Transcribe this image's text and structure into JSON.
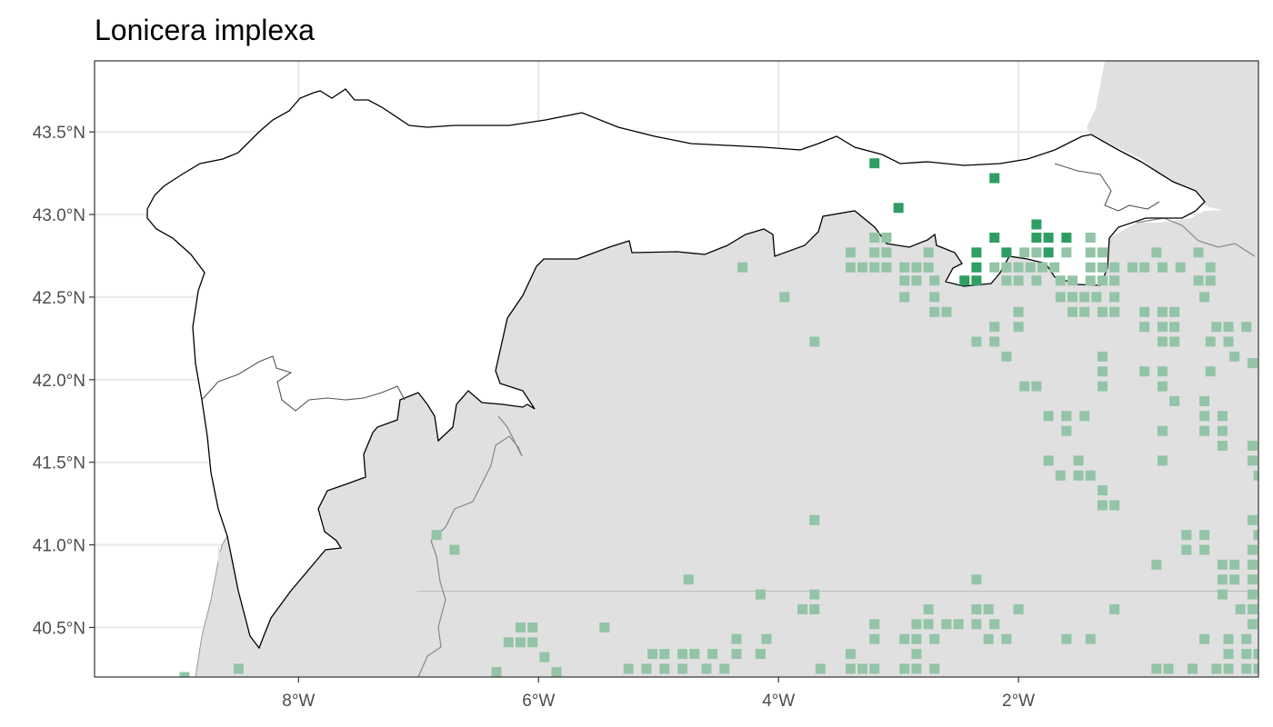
{
  "title": "Lonicera implexa",
  "colors": {
    "land_other": "#e0e0e0",
    "region_fill": "#ffffff",
    "region_border": "#000000",
    "internal_border": "#555555",
    "grid": "#ebebeb",
    "panel_border": "#333333",
    "presence": "#2e9e63",
    "other": "#93c4a7"
  },
  "chart_data": {
    "type": "map",
    "title": "Lonicera implexa",
    "xlim": [
      -9.7,
      0.0
    ],
    "ylim": [
      40.2,
      43.93
    ],
    "grid": true,
    "x_ticks": [
      {
        "value": -8,
        "label": "8°W"
      },
      {
        "value": -6,
        "label": "6°W"
      },
      {
        "value": -4,
        "label": "4°W"
      },
      {
        "value": -2,
        "label": "2°W"
      }
    ],
    "y_ticks": [
      {
        "value": 43.5,
        "label": "43.5°N"
      },
      {
        "value": 43.0,
        "label": "43.0°N"
      },
      {
        "value": 42.5,
        "label": "42.5°N"
      },
      {
        "value": 42.0,
        "label": "42.0°N"
      },
      {
        "value": 41.5,
        "label": "41.5°N"
      },
      {
        "value": 41.0,
        "label": "41.0°N"
      },
      {
        "value": 40.5,
        "label": "40.5°N"
      }
    ],
    "presence_points": [
      [
        -3.2,
        43.31
      ],
      [
        -2.2,
        43.22
      ],
      [
        -3.0,
        43.04
      ],
      [
        -1.85,
        42.94
      ],
      [
        -2.2,
        42.86
      ],
      [
        -1.85,
        42.86
      ],
      [
        -1.75,
        42.86
      ],
      [
        -1.6,
        42.86
      ],
      [
        -2.35,
        42.77
      ],
      [
        -2.1,
        42.77
      ],
      [
        -1.75,
        42.77
      ],
      [
        -2.35,
        42.68
      ],
      [
        -2.45,
        42.6
      ],
      [
        -2.35,
        42.6
      ]
    ],
    "other_points": [
      [
        -3.2,
        42.86
      ],
      [
        -3.1,
        42.86
      ],
      [
        -3.4,
        42.77
      ],
      [
        -3.2,
        42.77
      ],
      [
        -3.1,
        42.77
      ],
      [
        -2.75,
        42.77
      ],
      [
        -1.95,
        42.77
      ],
      [
        -1.85,
        42.77
      ],
      [
        -1.6,
        42.77
      ],
      [
        -1.4,
        42.86
      ],
      [
        -1.4,
        42.77
      ],
      [
        -1.3,
        42.77
      ],
      [
        -0.85,
        42.77
      ],
      [
        -4.3,
        42.68
      ],
      [
        -3.4,
        42.68
      ],
      [
        -3.3,
        42.68
      ],
      [
        -3.2,
        42.68
      ],
      [
        -3.1,
        42.68
      ],
      [
        -2.95,
        42.68
      ],
      [
        -2.85,
        42.68
      ],
      [
        -2.75,
        42.68
      ],
      [
        -2.2,
        42.68
      ],
      [
        -2.1,
        42.68
      ],
      [
        -2.0,
        42.68
      ],
      [
        -1.9,
        42.68
      ],
      [
        -1.8,
        42.68
      ],
      [
        -1.7,
        42.68
      ],
      [
        -1.4,
        42.68
      ],
      [
        -1.3,
        42.68
      ],
      [
        -1.2,
        42.68
      ],
      [
        -1.05,
        42.68
      ],
      [
        -0.95,
        42.68
      ],
      [
        -0.8,
        42.68
      ],
      [
        -0.65,
        42.68
      ],
      [
        -0.4,
        42.68
      ],
      [
        -0.5,
        42.77
      ],
      [
        -2.95,
        42.6
      ],
      [
        -2.85,
        42.6
      ],
      [
        -2.7,
        42.6
      ],
      [
        -2.1,
        42.6
      ],
      [
        -2.0,
        42.6
      ],
      [
        -1.85,
        42.6
      ],
      [
        -1.65,
        42.6
      ],
      [
        -1.55,
        42.6
      ],
      [
        -1.4,
        42.6
      ],
      [
        -1.3,
        42.6
      ],
      [
        -1.2,
        42.6
      ],
      [
        -0.5,
        42.6
      ],
      [
        -0.4,
        42.6
      ],
      [
        -3.95,
        42.5
      ],
      [
        -2.95,
        42.5
      ],
      [
        -2.7,
        42.5
      ],
      [
        -1.65,
        42.5
      ],
      [
        -1.55,
        42.5
      ],
      [
        -1.45,
        42.5
      ],
      [
        -1.35,
        42.5
      ],
      [
        -1.2,
        42.5
      ],
      [
        -0.45,
        42.5
      ],
      [
        -2.7,
        42.41
      ],
      [
        -2.6,
        42.41
      ],
      [
        -2.0,
        42.41
      ],
      [
        -1.55,
        42.41
      ],
      [
        -1.45,
        42.41
      ],
      [
        -1.3,
        42.41
      ],
      [
        -1.2,
        42.41
      ],
      [
        -0.95,
        42.41
      ],
      [
        -0.8,
        42.41
      ],
      [
        -0.7,
        42.41
      ],
      [
        -2.2,
        42.32
      ],
      [
        -2.0,
        42.32
      ],
      [
        -0.95,
        42.32
      ],
      [
        -0.8,
        42.32
      ],
      [
        -0.7,
        42.32
      ],
      [
        -0.35,
        42.32
      ],
      [
        -0.25,
        42.32
      ],
      [
        -0.1,
        42.32
      ],
      [
        -3.7,
        42.23
      ],
      [
        -2.35,
        42.23
      ],
      [
        -2.2,
        42.23
      ],
      [
        -0.8,
        42.23
      ],
      [
        -0.7,
        42.23
      ],
      [
        -0.4,
        42.23
      ],
      [
        -0.25,
        42.23
      ],
      [
        -2.1,
        42.14
      ],
      [
        -1.3,
        42.14
      ],
      [
        -0.2,
        42.14
      ],
      [
        -0.05,
        42.1
      ],
      [
        -1.3,
        42.05
      ],
      [
        -0.95,
        42.05
      ],
      [
        -0.8,
        42.05
      ],
      [
        -0.4,
        42.05
      ],
      [
        -1.95,
        41.96
      ],
      [
        -1.85,
        41.96
      ],
      [
        -1.3,
        41.96
      ],
      [
        -0.8,
        41.96
      ],
      [
        -0.7,
        41.87
      ],
      [
        -0.45,
        41.87
      ],
      [
        -1.75,
        41.78
      ],
      [
        -1.6,
        41.78
      ],
      [
        -1.45,
        41.78
      ],
      [
        -0.45,
        41.78
      ],
      [
        -0.3,
        41.78
      ],
      [
        -1.6,
        41.69
      ],
      [
        -0.8,
        41.69
      ],
      [
        -0.45,
        41.69
      ],
      [
        -0.3,
        41.69
      ],
      [
        -0.3,
        41.6
      ],
      [
        -0.05,
        41.6
      ],
      [
        -1.75,
        41.51
      ],
      [
        -1.5,
        41.51
      ],
      [
        -0.8,
        41.51
      ],
      [
        -0.05,
        41.51
      ],
      [
        -1.65,
        41.42
      ],
      [
        -1.5,
        41.42
      ],
      [
        -1.4,
        41.42
      ],
      [
        0.0,
        41.42
      ],
      [
        -1.3,
        41.33
      ],
      [
        -1.3,
        41.24
      ],
      [
        -1.2,
        41.24
      ],
      [
        -3.7,
        41.15
      ],
      [
        -0.05,
        41.15
      ],
      [
        -6.85,
        41.06
      ],
      [
        -0.6,
        41.06
      ],
      [
        -0.45,
        41.06
      ],
      [
        0.0,
        41.06
      ],
      [
        -6.7,
        40.97
      ],
      [
        -0.6,
        40.97
      ],
      [
        -0.45,
        40.97
      ],
      [
        -0.05,
        40.97
      ],
      [
        -0.85,
        40.88
      ],
      [
        -0.3,
        40.88
      ],
      [
        -0.2,
        40.88
      ],
      [
        -0.05,
        40.88
      ],
      [
        -4.75,
        40.79
      ],
      [
        -2.35,
        40.79
      ],
      [
        -0.3,
        40.79
      ],
      [
        -0.2,
        40.79
      ],
      [
        -0.05,
        40.79
      ],
      [
        -4.15,
        40.7
      ],
      [
        -3.7,
        40.7
      ],
      [
        -0.3,
        40.7
      ],
      [
        -0.05,
        40.7
      ],
      [
        -3.8,
        40.61
      ],
      [
        -3.7,
        40.61
      ],
      [
        -2.75,
        40.61
      ],
      [
        -2.35,
        40.61
      ],
      [
        -2.25,
        40.61
      ],
      [
        -2.0,
        40.61
      ],
      [
        -1.2,
        40.61
      ],
      [
        -0.15,
        40.61
      ],
      [
        -0.05,
        40.61
      ],
      [
        -6.15,
        40.5
      ],
      [
        -6.05,
        40.5
      ],
      [
        -5.45,
        40.5
      ],
      [
        -3.2,
        40.52
      ],
      [
        -2.85,
        40.52
      ],
      [
        -2.75,
        40.52
      ],
      [
        -2.6,
        40.52
      ],
      [
        -2.5,
        40.52
      ],
      [
        -2.35,
        40.52
      ],
      [
        -2.2,
        40.52
      ],
      [
        -0.05,
        40.52
      ],
      [
        -6.25,
        40.41
      ],
      [
        -6.15,
        40.41
      ],
      [
        -6.05,
        40.41
      ],
      [
        -4.35,
        40.43
      ],
      [
        -4.1,
        40.43
      ],
      [
        -3.2,
        40.43
      ],
      [
        -2.95,
        40.43
      ],
      [
        -2.85,
        40.43
      ],
      [
        -2.7,
        40.43
      ],
      [
        -2.25,
        40.43
      ],
      [
        -2.1,
        40.43
      ],
      [
        -1.6,
        40.43
      ],
      [
        -1.4,
        40.43
      ],
      [
        -0.45,
        40.43
      ],
      [
        -0.25,
        40.43
      ],
      [
        -0.1,
        40.43
      ],
      [
        -5.95,
        40.32
      ],
      [
        -5.05,
        40.34
      ],
      [
        -4.95,
        40.34
      ],
      [
        -4.8,
        40.34
      ],
      [
        -4.7,
        40.34
      ],
      [
        -4.55,
        40.34
      ],
      [
        -4.35,
        40.34
      ],
      [
        -4.15,
        40.34
      ],
      [
        -3.4,
        40.34
      ],
      [
        -2.85,
        40.34
      ],
      [
        -0.25,
        40.34
      ],
      [
        -0.1,
        40.34
      ],
      [
        0.0,
        40.34
      ],
      [
        -8.5,
        40.25
      ],
      [
        -6.35,
        40.23
      ],
      [
        -5.85,
        40.23
      ],
      [
        -5.25,
        40.25
      ],
      [
        -5.1,
        40.25
      ],
      [
        -4.95,
        40.25
      ],
      [
        -4.8,
        40.25
      ],
      [
        -4.6,
        40.25
      ],
      [
        -4.45,
        40.25
      ],
      [
        -3.65,
        40.25
      ],
      [
        -3.4,
        40.25
      ],
      [
        -3.3,
        40.25
      ],
      [
        -3.2,
        40.25
      ],
      [
        -2.95,
        40.25
      ],
      [
        -2.85,
        40.25
      ],
      [
        -2.7,
        40.25
      ],
      [
        -0.85,
        40.25
      ],
      [
        -0.75,
        40.25
      ],
      [
        -0.55,
        40.25
      ],
      [
        -0.35,
        40.25
      ],
      [
        -0.25,
        40.25
      ],
      [
        -0.1,
        40.25
      ],
      [
        0.0,
        40.25
      ],
      [
        -8.95,
        40.2
      ]
    ]
  }
}
